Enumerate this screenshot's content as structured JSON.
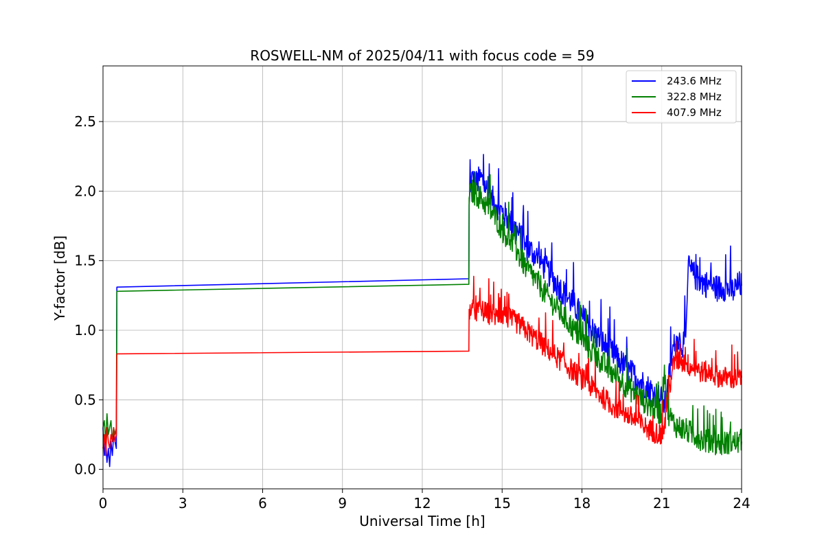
{
  "chart_data": {
    "type": "line",
    "title": "ROSWELL-NM of 2025/04/11 with focus code = 59",
    "xlabel": "Universal Time [h]",
    "ylabel": "Y-factor [dB]",
    "xlim": [
      0,
      24
    ],
    "ylim": [
      -0.14,
      2.9
    ],
    "xticks": [
      0,
      3,
      6,
      9,
      12,
      15,
      18,
      21,
      24
    ],
    "xtick_labels": [
      "0",
      "3",
      "6",
      "9",
      "12",
      "15",
      "18",
      "21",
      "24"
    ],
    "yticks": [
      0.0,
      0.5,
      1.0,
      1.5,
      2.0,
      2.5
    ],
    "ytick_labels": [
      "0.0",
      "0.5",
      "1.0",
      "1.5",
      "2.0",
      "2.5"
    ],
    "grid": true,
    "legend_position": "top-right",
    "series": [
      {
        "name": "243.6 MHz",
        "color": "#0000ff",
        "x": [
          0.0,
          0.05,
          0.1,
          0.15,
          0.2,
          0.25,
          0.3,
          0.35,
          0.4,
          0.45,
          0.5,
          0.52,
          13.75,
          13.76,
          13.85,
          14.0,
          14.2,
          14.4,
          14.6,
          14.8,
          15.0,
          15.3,
          15.6,
          15.9,
          16.2,
          16.5,
          16.8,
          17.1,
          17.4,
          17.7,
          18.0,
          18.3,
          18.6,
          18.9,
          19.2,
          19.5,
          19.8,
          20.1,
          20.4,
          20.7,
          21.0,
          21.1,
          21.2,
          21.3,
          21.4,
          21.5,
          21.6,
          21.7,
          21.8,
          21.9,
          21.95,
          22.0,
          22.1,
          22.3,
          22.5,
          22.7,
          22.9,
          23.1,
          23.3,
          23.5,
          23.7,
          23.9,
          24.0
        ],
        "y": [
          0.3,
          0.1,
          0.2,
          0.05,
          0.15,
          0.02,
          0.2,
          0.1,
          0.25,
          0.2,
          0.15,
          1.31,
          1.37,
          1.9,
          2.1,
          2.05,
          2.1,
          2.02,
          1.95,
          1.9,
          1.85,
          1.78,
          1.7,
          1.6,
          1.55,
          1.48,
          1.4,
          1.32,
          1.25,
          1.18,
          1.1,
          1.02,
          0.95,
          0.88,
          0.82,
          0.76,
          0.7,
          0.65,
          0.6,
          0.55,
          0.5,
          0.45,
          0.55,
          0.7,
          0.85,
          0.9,
          0.95,
          0.92,
          0.9,
          0.95,
          1.2,
          1.5,
          1.42,
          1.38,
          1.35,
          1.33,
          1.32,
          1.3,
          1.31,
          1.3,
          1.28,
          1.33,
          1.32
        ],
        "noise": 0.1
      },
      {
        "name": "322.8 MHz",
        "color": "#008000",
        "x": [
          0.0,
          0.05,
          0.1,
          0.15,
          0.2,
          0.25,
          0.3,
          0.35,
          0.4,
          0.45,
          0.5,
          0.52,
          13.75,
          13.76,
          13.85,
          14.0,
          14.2,
          14.4,
          14.6,
          14.8,
          15.0,
          15.3,
          15.6,
          15.9,
          16.2,
          16.5,
          16.8,
          17.1,
          17.4,
          17.7,
          18.0,
          18.3,
          18.6,
          18.9,
          19.2,
          19.5,
          19.8,
          20.1,
          20.4,
          20.7,
          21.0,
          21.1,
          21.2,
          21.3,
          21.4,
          21.5,
          21.7,
          21.9,
          22.1,
          22.3,
          22.5,
          22.7,
          22.9,
          23.1,
          23.3,
          23.5,
          23.7,
          23.9,
          24.0
        ],
        "y": [
          0.3,
          0.35,
          0.2,
          0.4,
          0.25,
          0.3,
          0.35,
          0.2,
          0.3,
          0.25,
          0.3,
          1.28,
          1.33,
          1.95,
          2.0,
          1.98,
          1.95,
          1.9,
          1.85,
          1.8,
          1.72,
          1.65,
          1.55,
          1.45,
          1.38,
          1.3,
          1.22,
          1.15,
          1.08,
          1.0,
          0.93,
          0.86,
          0.8,
          0.74,
          0.68,
          0.63,
          0.58,
          0.53,
          0.48,
          0.44,
          0.4,
          0.75,
          0.45,
          0.38,
          0.35,
          0.32,
          0.3,
          0.28,
          0.26,
          0.24,
          0.22,
          0.2,
          0.2,
          0.19,
          0.18,
          0.2,
          0.19,
          0.2,
          0.2
        ],
        "noise": 0.09
      },
      {
        "name": "407.9 MHz",
        "color": "#ff0000",
        "x": [
          0.0,
          0.05,
          0.1,
          0.15,
          0.2,
          0.25,
          0.3,
          0.35,
          0.4,
          0.45,
          0.5,
          0.52,
          13.75,
          13.76,
          13.85,
          14.0,
          14.2,
          14.4,
          14.6,
          14.8,
          15.0,
          15.3,
          15.6,
          15.9,
          16.2,
          16.5,
          16.8,
          17.1,
          17.4,
          17.7,
          18.0,
          18.3,
          18.6,
          18.9,
          19.2,
          19.5,
          19.8,
          20.1,
          20.4,
          20.7,
          21.0,
          21.1,
          21.2,
          21.3,
          21.4,
          21.5,
          21.7,
          21.9,
          22.1,
          22.3,
          22.5,
          22.7,
          22.9,
          23.1,
          23.3,
          23.5,
          23.7,
          23.9,
          24.0
        ],
        "y": [
          0.15,
          0.25,
          0.1,
          0.3,
          0.2,
          0.15,
          0.25,
          0.2,
          0.3,
          0.2,
          0.25,
          0.83,
          0.85,
          1.15,
          1.15,
          1.13,
          1.15,
          1.12,
          1.12,
          1.1,
          1.12,
          1.08,
          1.05,
          1.0,
          0.95,
          0.9,
          0.85,
          0.8,
          0.75,
          0.7,
          0.65,
          0.6,
          0.55,
          0.5,
          0.45,
          0.42,
          0.38,
          0.34,
          0.3,
          0.27,
          0.25,
          0.3,
          0.45,
          0.6,
          0.72,
          0.78,
          0.78,
          0.76,
          0.74,
          0.72,
          0.7,
          0.7,
          0.68,
          0.67,
          0.66,
          0.66,
          0.65,
          0.66,
          0.66
        ],
        "noise": 0.08
      }
    ]
  }
}
